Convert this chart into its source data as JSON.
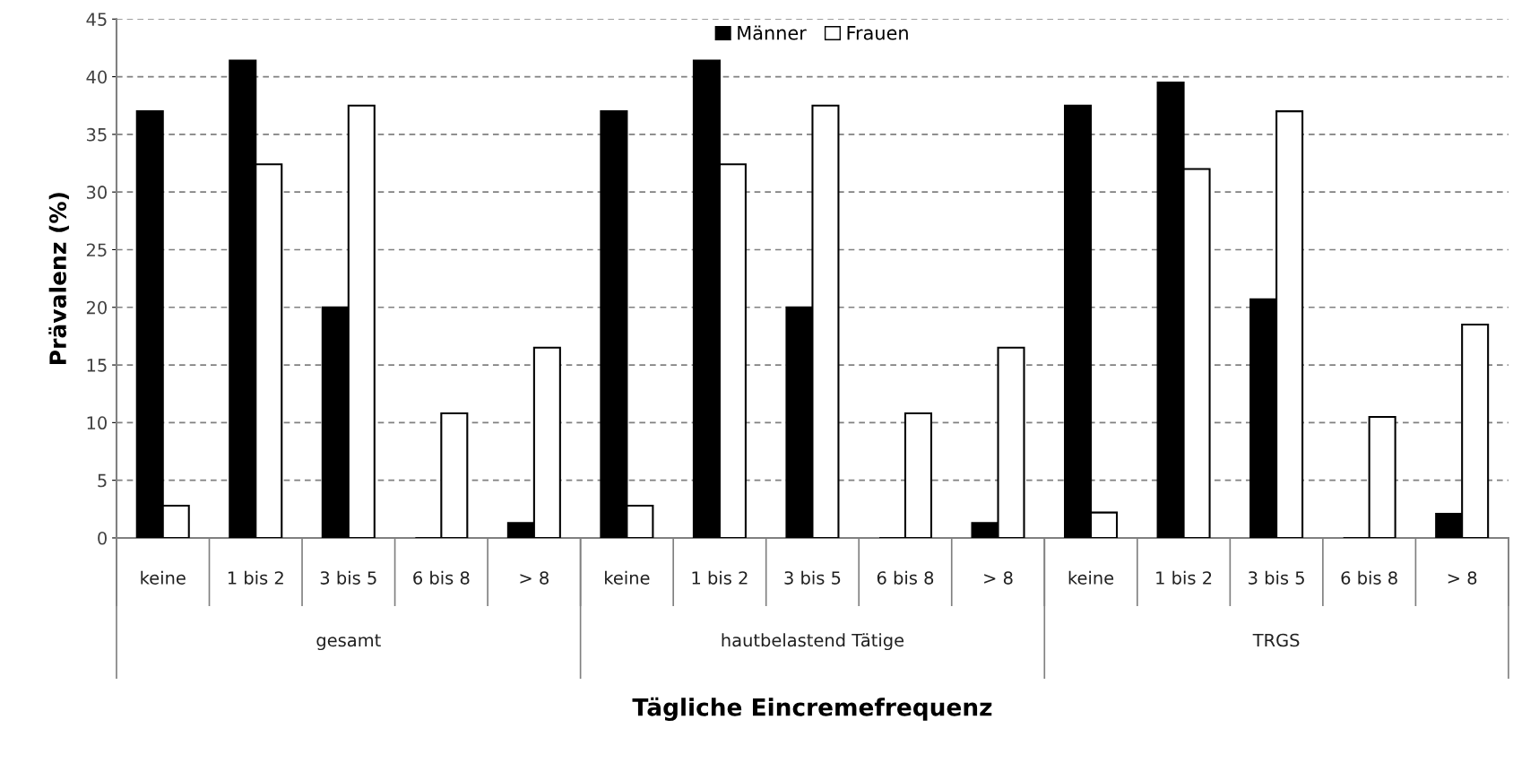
{
  "chart_data": {
    "type": "bar",
    "categories": [
      "keine",
      "1 bis 2",
      "3 bis 5",
      "6 bis 8",
      "> 8",
      "keine",
      "1 bis 2",
      "3 bis 5",
      "6 bis 8",
      "> 8",
      "keine",
      "1 bis 2",
      "3 bis 5",
      "6 bis 8",
      "> 8"
    ],
    "series": [
      {
        "name": "Männer",
        "color": "#000000",
        "values": [
          37,
          41.4,
          20,
          0,
          1.3,
          37,
          41.4,
          20,
          0,
          1.3,
          37.5,
          39.5,
          20.7,
          0,
          2.1
        ]
      },
      {
        "name": "Frauen",
        "color": "#ffffff",
        "values": [
          2.8,
          32.4,
          37.5,
          10.8,
          16.5,
          2.8,
          32.4,
          37.5,
          10.8,
          16.5,
          2.2,
          32,
          37,
          10.5,
          18.5
        ]
      }
    ],
    "annotations": [
      "gesamt",
      "hautbelastend Tätige",
      "TRGS"
    ],
    "xlabel": "Tägliche Eincremefrequenz",
    "ylabel": "Prävalenz (%)",
    "ylim": [
      0,
      45
    ],
    "yticks": [
      0,
      5,
      10,
      15,
      20,
      25,
      30,
      35,
      40,
      45
    ],
    "grid": "y",
    "legend": "top"
  }
}
